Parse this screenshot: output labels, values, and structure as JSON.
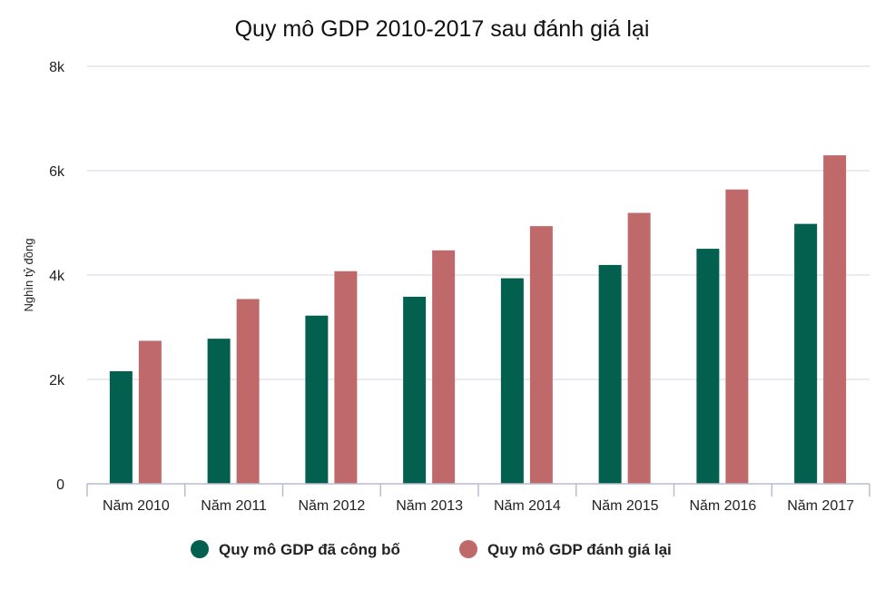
{
  "chart_data": {
    "type": "bar",
    "title": "Quy mô GDP 2010-2017 sau đánh giá lại",
    "xlabel": "",
    "ylabel": "Nghìn tỷ đồng",
    "ylim": [
      0,
      8000
    ],
    "yticks": [
      0,
      2000,
      4000,
      6000,
      8000
    ],
    "ytick_labels": [
      "0",
      "2k",
      "4k",
      "6k",
      "8k"
    ],
    "grid": true,
    "legend_position": "bottom",
    "categories": [
      "Năm 2010",
      "Năm 2011",
      "Năm 2012",
      "Năm 2013",
      "Năm 2014",
      "Năm 2015",
      "Năm 2016",
      "Năm 2017"
    ],
    "series": [
      {
        "name": "Quy mô GDP đã công bố",
        "color": "#03604f",
        "values": [
          2157,
          2780,
          3222,
          3584,
          3938,
          4193,
          4503,
          4980
        ]
      },
      {
        "name": "Quy mô GDP đánh giá lại",
        "color": "#c0696b",
        "values": [
          2740,
          3540,
          4073,
          4473,
          4937,
          5191,
          5639,
          6294
        ]
      }
    ]
  }
}
